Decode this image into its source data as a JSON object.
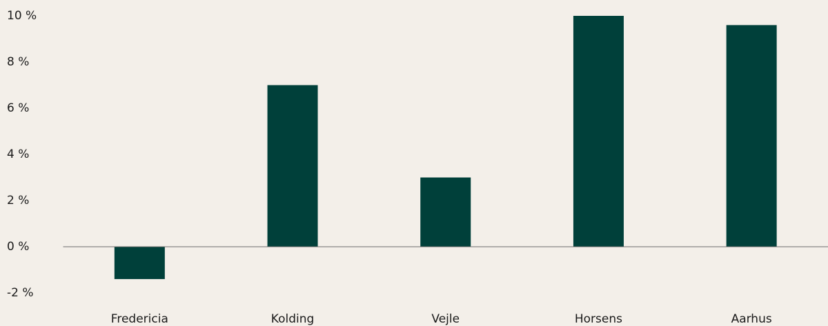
{
  "chart_data": {
    "type": "bar",
    "categories": [
      "Fredericia",
      "Kolding",
      "Vejle",
      "Horsens",
      "Aarhus"
    ],
    "values": [
      -1.4,
      7,
      3,
      10,
      9.6
    ],
    "color": "#00403a",
    "ylim": [
      -2,
      10
    ],
    "yticks": [
      {
        "value": -2,
        "label": "-2 %"
      },
      {
        "value": 0,
        "label": "0 %"
      },
      {
        "value": 2,
        "label": "2 %"
      },
      {
        "value": 4,
        "label": "4 %"
      },
      {
        "value": 6,
        "label": "6 %"
      },
      {
        "value": 8,
        "label": "8 %"
      },
      {
        "value": 10,
        "label": "10 %"
      }
    ],
    "grid": false
  }
}
